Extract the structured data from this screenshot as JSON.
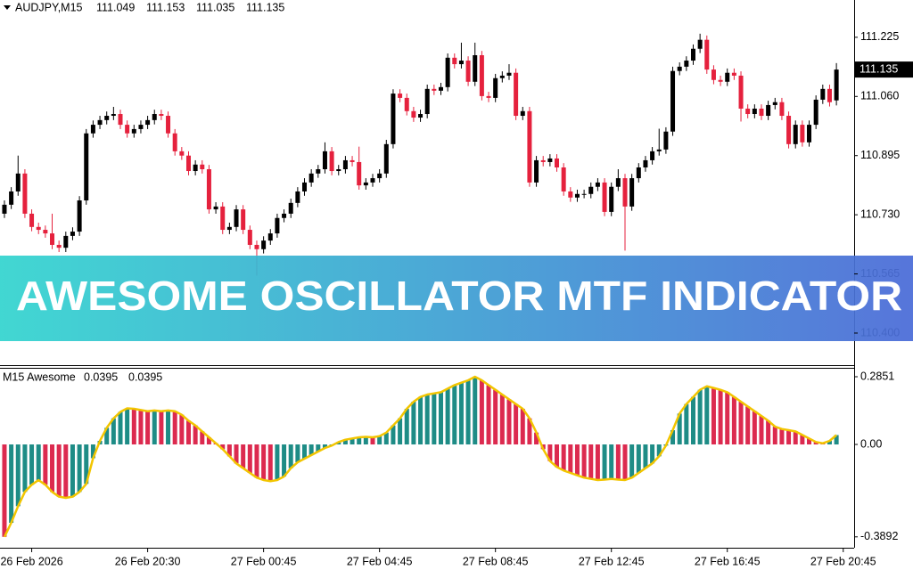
{
  "chart_data": [
    {
      "type": "candlestick",
      "title": "AUDJPY,M15",
      "up_color": "#000000",
      "down_color": "#e5213d",
      "xlim": [
        -0.65,
        124.6
      ],
      "ylim": [
        110.313,
        111.329
      ],
      "yticks": [
        111.225,
        {
          "value": 111.06,
          "label": "111.060"
        },
        110.895,
        {
          "value": 110.73,
          "label": "110.730"
        },
        110.565,
        {
          "value": 110.4,
          "label": "110.400"
        }
      ],
      "open": [
        110.733,
        110.758,
        110.795,
        110.845,
        110.733,
        110.696,
        110.688,
        110.678,
        110.646,
        110.638,
        110.671,
        110.683,
        110.77,
        110.957,
        110.981,
        110.994,
        111.006,
        111.011,
        110.981,
        110.957,
        110.969,
        110.981,
        110.994,
        111.011,
        111.006,
        110.957,
        110.907,
        110.895,
        110.852,
        110.87,
        110.857,
        110.745,
        110.753,
        110.688,
        110.696,
        110.745,
        110.688,
        110.646,
        110.634,
        110.658,
        110.678,
        110.721,
        110.733,
        110.763,
        110.795,
        110.82,
        110.845,
        110.857,
        110.907,
        110.852,
        110.857,
        110.882,
        110.877,
        110.812,
        110.82,
        110.832,
        110.845,
        110.927,
        111.068,
        111.056,
        111.019,
        111.001,
        111.011,
        111.081,
        111.076,
        111.086,
        111.168,
        111.15,
        111.16,
        111.101,
        111.175,
        111.061,
        111.056,
        111.111,
        111.118,
        111.126,
        111.006,
        111.019,
        110.82,
        110.882,
        110.877,
        110.887,
        110.862,
        110.795,
        110.778,
        110.788,
        110.788,
        110.808,
        110.82,
        110.738,
        110.808,
        110.832,
        110.753,
        110.832,
        110.862,
        110.882,
        110.907,
        110.912,
        110.962,
        111.131,
        111.143,
        111.16,
        111.193,
        111.218,
        111.135,
        111.106,
        111.101,
        111.126,
        111.118,
        111.026,
        111.011,
        111.026,
        111.006,
        111.036,
        111.044,
        111.006,
        110.927,
        110.981,
        110.932,
        110.981,
        111.051,
        111.081,
        111.049
      ],
      "high": [
        110.77,
        110.807,
        110.895,
        110.857,
        110.745,
        110.708,
        110.7,
        110.733,
        110.658,
        110.683,
        110.695,
        110.782,
        110.969,
        110.993,
        111.006,
        111.018,
        111.031,
        111.023,
        110.993,
        110.981,
        110.993,
        111.006,
        111.023,
        111.023,
        111.018,
        110.969,
        110.919,
        110.907,
        110.882,
        110.882,
        110.869,
        110.765,
        110.765,
        110.708,
        110.757,
        110.757,
        110.7,
        110.658,
        110.67,
        110.69,
        110.733,
        110.745,
        110.775,
        110.807,
        110.832,
        110.857,
        110.869,
        110.932,
        110.919,
        110.869,
        110.894,
        110.894,
        110.92,
        110.832,
        110.844,
        110.857,
        110.939,
        111.08,
        111.08,
        111.068,
        111.031,
        111.023,
        111.093,
        111.093,
        111.098,
        111.18,
        111.18,
        111.21,
        111.172,
        111.21,
        111.187,
        111.073,
        111.123,
        111.13,
        111.15,
        111.138,
        111.031,
        111.031,
        110.894,
        110.894,
        110.899,
        110.899,
        110.874,
        110.807,
        110.8,
        110.8,
        110.82,
        110.832,
        110.832,
        110.82,
        110.857,
        110.844,
        110.844,
        110.874,
        110.894,
        110.919,
        110.97,
        110.974,
        111.143,
        111.155,
        111.172,
        111.205,
        111.235,
        111.23,
        111.147,
        111.118,
        111.138,
        111.138,
        111.13,
        111.038,
        111.038,
        111.038,
        111.048,
        111.056,
        111.056,
        111.018,
        110.993,
        110.993,
        110.993,
        111.063,
        111.093,
        111.093,
        111.153
      ],
      "low": [
        110.721,
        110.746,
        110.783,
        110.721,
        110.684,
        110.676,
        110.666,
        110.634,
        110.626,
        110.626,
        110.659,
        110.671,
        110.758,
        110.945,
        110.969,
        110.982,
        110.994,
        110.969,
        110.945,
        110.945,
        110.957,
        110.969,
        110.982,
        110.994,
        110.945,
        110.895,
        110.883,
        110.84,
        110.84,
        110.845,
        110.733,
        110.733,
        110.676,
        110.676,
        110.684,
        110.676,
        110.634,
        110.56,
        110.622,
        110.646,
        110.666,
        110.709,
        110.721,
        110.751,
        110.783,
        110.808,
        110.833,
        110.845,
        110.84,
        110.84,
        110.845,
        110.865,
        110.8,
        110.8,
        110.808,
        110.82,
        110.833,
        110.915,
        111.044,
        111.007,
        110.989,
        110.989,
        110.999,
        111.064,
        111.064,
        111.074,
        111.138,
        111.138,
        111.089,
        111.089,
        111.049,
        111.044,
        111.044,
        111.099,
        111.106,
        110.994,
        110.994,
        110.808,
        110.808,
        110.865,
        110.865,
        110.85,
        110.783,
        110.766,
        110.766,
        110.776,
        110.776,
        110.796,
        110.726,
        110.726,
        110.796,
        110.63,
        110.741,
        110.82,
        110.85,
        110.87,
        110.895,
        110.9,
        110.95,
        111.119,
        111.131,
        111.148,
        111.181,
        111.123,
        111.094,
        111.089,
        111.089,
        111.106,
        110.99,
        110.999,
        110.999,
        110.994,
        110.994,
        111.024,
        110.994,
        110.915,
        110.915,
        110.92,
        110.92,
        110.969,
        111.039,
        111.032,
        111.035
      ],
      "close": [
        110.758,
        110.795,
        110.845,
        110.733,
        110.696,
        110.688,
        110.678,
        110.646,
        110.638,
        110.671,
        110.683,
        110.77,
        110.957,
        110.981,
        110.994,
        111.006,
        111.011,
        110.981,
        110.957,
        110.969,
        110.981,
        110.994,
        111.011,
        111.006,
        110.957,
        110.907,
        110.895,
        110.852,
        110.87,
        110.857,
        110.745,
        110.753,
        110.688,
        110.696,
        110.745,
        110.688,
        110.646,
        110.634,
        110.658,
        110.678,
        110.721,
        110.733,
        110.763,
        110.795,
        110.82,
        110.845,
        110.857,
        110.907,
        110.852,
        110.857,
        110.882,
        110.877,
        110.812,
        110.82,
        110.832,
        110.845,
        110.927,
        111.068,
        111.056,
        111.019,
        111.001,
        111.011,
        111.081,
        111.076,
        111.086,
        111.168,
        111.15,
        111.16,
        111.101,
        111.175,
        111.061,
        111.056,
        111.111,
        111.118,
        111.126,
        111.006,
        111.019,
        110.82,
        110.882,
        110.877,
        110.887,
        110.862,
        110.795,
        110.778,
        110.788,
        110.788,
        110.808,
        110.82,
        110.738,
        110.808,
        110.832,
        110.753,
        110.832,
        110.862,
        110.882,
        110.907,
        110.912,
        110.962,
        111.131,
        111.143,
        111.16,
        111.193,
        111.218,
        111.135,
        111.106,
        111.101,
        111.126,
        111.118,
        111.026,
        111.011,
        111.026,
        111.006,
        111.036,
        111.044,
        111.006,
        110.927,
        110.981,
        110.932,
        110.981,
        111.051,
        111.081,
        111.044,
        111.135
      ]
    },
    {
      "type": "oscillator",
      "title": "M15 Awesome",
      "up_color": "#1e8c86",
      "down_color": "#dc2a4f",
      "line_color": "#f2c500",
      "xlim": [
        -0.65,
        124.6
      ],
      "ylim": [
        -0.435,
        0.3226
      ],
      "yticks": [
        0.2851,
        {
          "value": 0,
          "label": "0.00"
        },
        -0.3892
      ],
      "xticks": [
        {
          "value": 4,
          "label": "26 Feb 2026"
        },
        {
          "value": 21,
          "label": "26 Feb 20:30"
        },
        {
          "value": 38,
          "label": "27 Feb 00:45"
        },
        {
          "value": 55,
          "label": "27 Feb 04:45"
        },
        {
          "value": 72,
          "label": "27 Feb 08:45"
        },
        {
          "value": 89,
          "label": "27 Feb 12:45"
        },
        {
          "value": 106,
          "label": "27 Feb 16:45"
        },
        {
          "value": 123,
          "label": "27 Feb 20:45"
        }
      ],
      "values": [
        -0.3892,
        -0.33,
        -0.26,
        -0.2,
        -0.17,
        -0.15,
        -0.17,
        -0.2,
        -0.22,
        -0.225,
        -0.22,
        -0.2,
        -0.166,
        -0.058,
        0.015,
        0.07,
        0.11,
        0.137,
        0.152,
        0.15,
        0.145,
        0.14,
        0.143,
        0.14,
        0.143,
        0.14,
        0.125,
        0.1,
        0.08,
        0.055,
        0.03,
        0.005,
        -0.02,
        -0.05,
        -0.08,
        -0.1,
        -0.12,
        -0.14,
        -0.15,
        -0.155,
        -0.15,
        -0.135,
        -0.1,
        -0.075,
        -0.06,
        -0.045,
        -0.03,
        -0.015,
        -0.005,
        0.01,
        0.02,
        0.025,
        0.03,
        0.032,
        0.03,
        0.035,
        0.05,
        0.08,
        0.11,
        0.15,
        0.18,
        0.2,
        0.21,
        0.215,
        0.22,
        0.235,
        0.25,
        0.26,
        0.27,
        0.2851,
        0.27,
        0.25,
        0.23,
        0.21,
        0.19,
        0.17,
        0.15,
        0.11,
        0.05,
        -0.02,
        -0.07,
        -0.095,
        -0.11,
        -0.12,
        -0.13,
        -0.14,
        -0.145,
        -0.15,
        -0.148,
        -0.145,
        -0.148,
        -0.15,
        -0.14,
        -0.12,
        -0.1,
        -0.08,
        -0.05,
        -0.005,
        0.06,
        0.13,
        0.17,
        0.2,
        0.23,
        0.245,
        0.238,
        0.23,
        0.22,
        0.2,
        0.18,
        0.16,
        0.14,
        0.12,
        0.1,
        0.075,
        0.065,
        0.06,
        0.055,
        0.04,
        0.025,
        0.01,
        0.005,
        0.015,
        0.0395
      ]
    }
  ],
  "banner": {
    "text": "AWESOME OSCILLATOR MTF INDICATOR"
  }
}
